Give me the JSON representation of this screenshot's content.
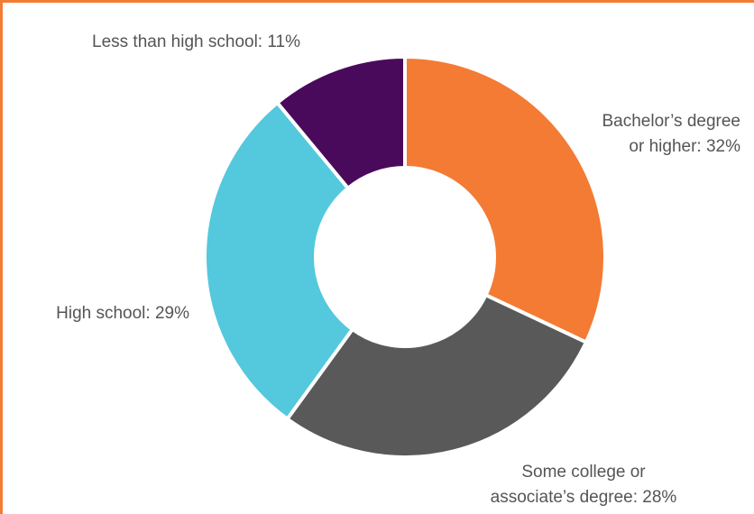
{
  "chart_data": {
    "type": "pie",
    "donut": true,
    "slices": [
      {
        "label": "Bachelor’s degree or higher: 32%",
        "lines": [
          "Bachelor’s degree",
          "or higher: 32%"
        ],
        "value": 32,
        "color": "#f47b34"
      },
      {
        "label": "Some college or associate’s degree: 28%",
        "lines": [
          "Some college or",
          "associate’s degree: 28%"
        ],
        "value": 28,
        "color": "#595959"
      },
      {
        "label": "High school: 29%",
        "lines": [
          "High school: 29%"
        ],
        "value": 29,
        "color": "#54c8dc"
      },
      {
        "label": "Less than high school: 11%",
        "lines": [
          "Less than high school: 11%"
        ],
        "value": 11,
        "color": "#4a0a5c"
      }
    ],
    "border_color": "#f47b34"
  }
}
